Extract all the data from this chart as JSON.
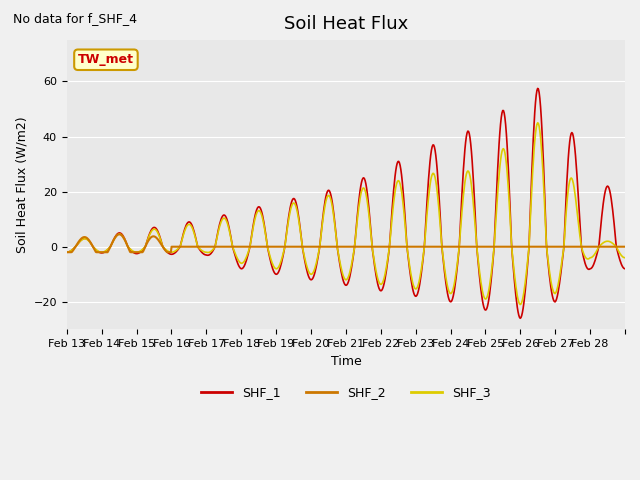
{
  "title": "Soil Heat Flux",
  "ylabel": "Soil Heat Flux (W/m2)",
  "xlabel": "Time",
  "ylim": [
    -30,
    75
  ],
  "note_text": "No data for f_SHF_4",
  "annotation_text": "TW_met",
  "xtick_labels": [
    "Feb 13",
    "Feb 14",
    "Feb 15",
    "Feb 16",
    "Feb 17",
    "Feb 18",
    "Feb 19",
    "Feb 20",
    "Feb 21",
    "Feb 22",
    "Feb 23",
    "Feb 24",
    "Feb 25",
    "Feb 26",
    "Feb 27",
    "Feb 28"
  ],
  "bg_color": "#e8e8e8",
  "shf1_color": "#cc0000",
  "shf2_color": "#cc7700",
  "shf3_color": "#ddcc00",
  "legend_labels": [
    "SHF_1",
    "SHF_2",
    "SHF_3"
  ]
}
